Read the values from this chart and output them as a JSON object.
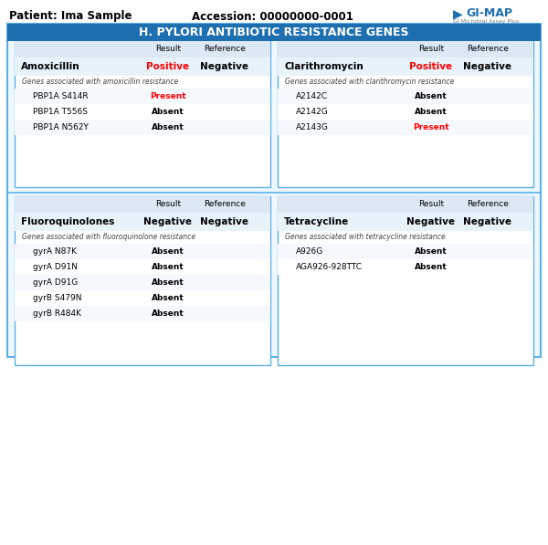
{
  "title": "H. PYLORI ANTIBIOTIC RESISTANCE GENES",
  "patient": "Patient: Ima Sample",
  "accession": "Accession: 00000000-0001",
  "bg_color": "#ffffff",
  "header_bg": "#1e6faf",
  "header_text_color": "#ffffff",
  "table_header_bg": "#dce9f5",
  "outer_border": "#5ab0e8",
  "inner_border": "#5ab0e8",
  "row_highlight": "#e8f2fb",
  "panels": [
    {
      "id": "amoxicillin",
      "col": 0,
      "row": 0,
      "drug": "Amoxicillin",
      "drug_result": "Positive",
      "drug_result_color": "#ff0000",
      "drug_reference": "Negative",
      "gene_label": "Genes associated with amoxicillin resistance",
      "genes": [
        {
          "name": "PBP1A S414R",
          "result": "Present",
          "result_color": "#ff0000"
        },
        {
          "name": "PBP1A T556S",
          "result": "Absent",
          "result_color": "#000000"
        },
        {
          "name": "PBP1A N562Y",
          "result": "Absent",
          "result_color": "#000000"
        }
      ]
    },
    {
      "id": "clarithromycin",
      "col": 1,
      "row": 0,
      "drug": "Clarithromycin",
      "drug_result": "Positive",
      "drug_result_color": "#ff0000",
      "drug_reference": "Negative",
      "gene_label": "Genes associated with clarithromycin resistance",
      "genes": [
        {
          "name": "A2142C",
          "result": "Absent",
          "result_color": "#000000"
        },
        {
          "name": "A2142G",
          "result": "Absent",
          "result_color": "#000000"
        },
        {
          "name": "A2143G",
          "result": "Present",
          "result_color": "#ff0000"
        }
      ]
    },
    {
      "id": "fluoroquinolones",
      "col": 0,
      "row": 1,
      "drug": "Fluoroquinolones",
      "drug_result": "Negative",
      "drug_result_color": "#000000",
      "drug_reference": "Negative",
      "gene_label": "Genes associated with fluoroquinolone resistance",
      "genes": [
        {
          "name": "gyrA N87K",
          "result": "Absent",
          "result_color": "#000000"
        },
        {
          "name": "gyrA D91N",
          "result": "Absent",
          "result_color": "#000000"
        },
        {
          "name": "gyrA D91G",
          "result": "Absent",
          "result_color": "#000000"
        },
        {
          "name": "gyrB S479N",
          "result": "Absent",
          "result_color": "#000000"
        },
        {
          "name": "gyrB R484K",
          "result": "Absent",
          "result_color": "#000000"
        }
      ]
    },
    {
      "id": "tetracycline",
      "col": 1,
      "row": 1,
      "drug": "Tetracycline",
      "drug_result": "Negative",
      "drug_result_color": "#000000",
      "drug_reference": "Negative",
      "gene_label": "Genes associated with tetracycline resistance",
      "genes": [
        {
          "name": "A926G",
          "result": "Absent",
          "result_color": "#000000"
        },
        {
          "name": "AGA926-928TTC",
          "result": "Absent",
          "result_color": "#000000"
        }
      ]
    }
  ]
}
